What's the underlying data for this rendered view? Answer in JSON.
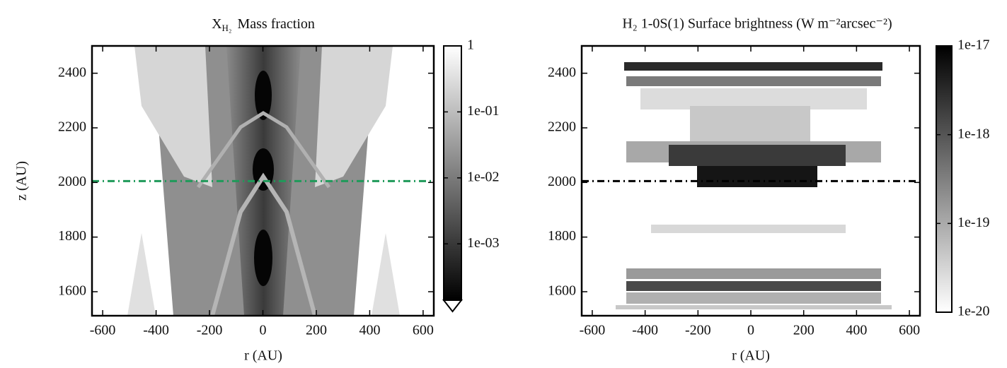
{
  "chart_data": [
    {
      "type": "heatmap",
      "title": "X",
      "title_subscript": "H₂",
      "title_suffix": "Mass fraction",
      "xlabel": "r (AU)",
      "ylabel": "z (AU)",
      "xlim": [
        -640,
        640
      ],
      "ylim": [
        1512,
        2500
      ],
      "xticks": [
        -600,
        -400,
        -200,
        0,
        200,
        400,
        600
      ],
      "yticks": [
        1600,
        1800,
        2000,
        2200,
        2400
      ],
      "hline": {
        "value": 2005,
        "color": "#1f9a5a",
        "style": "dashdot"
      },
      "colorbar": {
        "scale": "log",
        "lim": [
          0.00014,
          1
        ],
        "colormap": "gray",
        "extend": "min",
        "ticks": [
          1,
          {
            "value": 0.1,
            "label": "1e-01"
          },
          {
            "value": 0.01,
            "label": "1e-02"
          },
          {
            "value": 0.001,
            "label": "1e-03"
          }
        ]
      }
    },
    {
      "type": "heatmap",
      "title": "H₂ 1-0S(1) Surface brightness (W m⁻²arcsec⁻²)",
      "xlabel": "r (AU)",
      "xlim": [
        -640,
        640
      ],
      "ylim": [
        1512,
        2500
      ],
      "xticks": [
        -600,
        -400,
        -200,
        0,
        200,
        400,
        600
      ],
      "yticks": [
        1600,
        1800,
        2000,
        2200,
        2400
      ],
      "hline": {
        "value": 2005,
        "color": "#000000",
        "style": "dashdot"
      },
      "colorbar": {
        "scale": "log",
        "lim": [
          1e-20,
          1e-17
        ],
        "colormap": "gray_r",
        "ticks": [
          {
            "value": 1e-17,
            "label": "1e-17"
          },
          {
            "value": 1e-18,
            "label": "1e-18"
          },
          {
            "value": 1e-19,
            "label": "1e-19"
          },
          {
            "value": 1e-20,
            "label": "1e-20"
          }
        ]
      }
    }
  ]
}
